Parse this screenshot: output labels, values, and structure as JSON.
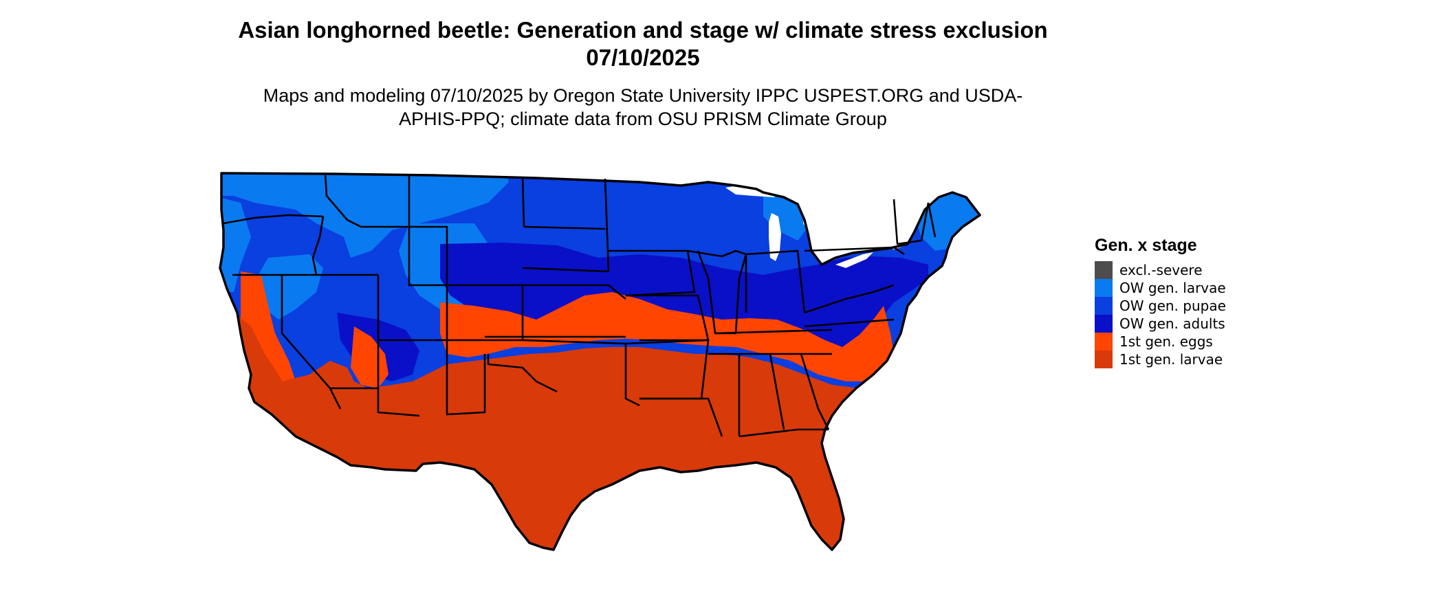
{
  "title": "Asian longhorned beetle: Generation and stage w/ climate stress exclusion 07/10/2025",
  "subtitle": "Maps and modeling 07/10/2025 by Oregon State University IPPC USPEST.ORG and USDA-APHIS-PPQ; climate data from OSU PRISM Climate Group",
  "legend": {
    "title": "Gen. x stage",
    "items": [
      {
        "label": "excl.-severe",
        "color": "#4d4d4d"
      },
      {
        "label": "OW gen. larvae",
        "color": "#0a7af0"
      },
      {
        "label": "OW gen. pupae",
        "color": "#0a3fe0"
      },
      {
        "label": "OW gen. adults",
        "color": "#0a10c8"
      },
      {
        "label": "1st gen. eggs",
        "color": "#ff4500"
      },
      {
        "label": "1st gen. larvae",
        "color": "#d93a0a"
      }
    ]
  }
}
